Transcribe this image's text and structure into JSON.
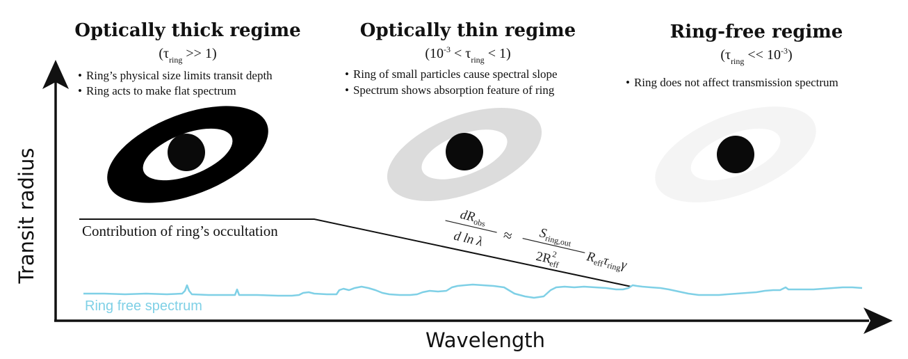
{
  "regimes": [
    {
      "title": "Optically thick regime",
      "condition": {
        "open": "(τ",
        "sub": "ring",
        "rest": " >> 1)"
      },
      "bullets": [
        "Ring’s physical size limits transit depth",
        "Ring acts to make flat spectrum"
      ],
      "ring_color": "#000000",
      "planet_color": "#0a0a0a"
    },
    {
      "title": "Optically thin regime",
      "condition": {
        "pre": "(10",
        "sup": "-3",
        "mid": " < τ",
        "sub": "ring",
        "rest": " < 1)"
      },
      "bullets": [
        "Ring of small particles cause spectral slope",
        "Spectrum shows absorption feature of ring"
      ],
      "ring_color": "#dcdcdc",
      "planet_color": "#0a0a0a"
    },
    {
      "title": "Ring-free regime",
      "condition": {
        "open": "(τ",
        "sub": "ring",
        "mid": " << 10",
        "sup": "-3",
        "rest": ")"
      },
      "bullets": [
        "Ring does not affect transmission spectrum"
      ],
      "ring_color": "#f4f4f4",
      "planet_color": "#0a0a0a"
    }
  ],
  "bullet_glyph": "•",
  "axes": {
    "x_label": "Wavelength",
    "y_label": "Transit radius"
  },
  "occultation_label": "Contribution of ring’s occultation",
  "spectrum_label": "Ring free spectrum",
  "spectrum_color": "#7fd0e6",
  "equation": {
    "lhs_num": "dR",
    "lhs_num_sub": "obs",
    "lhs_den": "d ln λ",
    "approx": "≈",
    "rhs_num": "S",
    "rhs_num_sub": "ring,out",
    "rhs_den": "2R",
    "rhs_den_sup": "2",
    "rhs_den_sub": "eff",
    "tail": "R",
    "tail_sub1": "eff",
    "tail2": "τ",
    "tail_sub2": "ring",
    "tail3": "γ"
  }
}
